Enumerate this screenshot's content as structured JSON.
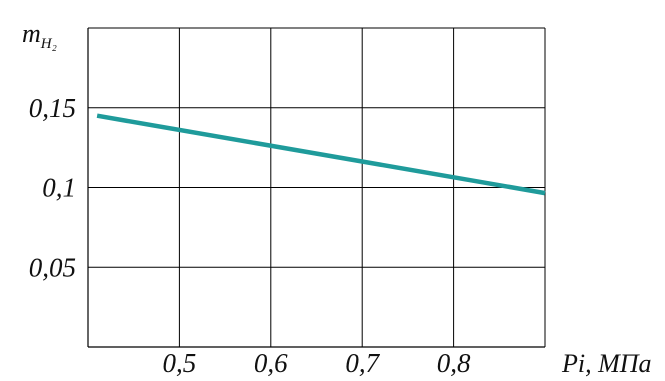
{
  "chart_data": {
    "type": "line",
    "title": "",
    "xlabel": "Pi, МПа",
    "ylabel": "m",
    "ylabel_subscript": "H₂",
    "x_ticks": [
      {
        "value": 0.5,
        "label": "0,5"
      },
      {
        "value": 0.6,
        "label": "0,6"
      },
      {
        "value": 0.7,
        "label": "0,7"
      },
      {
        "value": 0.8,
        "label": "0,8"
      }
    ],
    "y_ticks": [
      {
        "value": 0.05,
        "label": "0,05"
      },
      {
        "value": 0.1,
        "label": "0,1"
      },
      {
        "value": 0.15,
        "label": "0,15"
      }
    ],
    "xlim": [
      0.4,
      0.9
    ],
    "ylim": [
      0.0,
      0.2
    ],
    "grid": true,
    "series": [
      {
        "color": "#1f9b9b",
        "x": [
          0.41,
          0.9
        ],
        "y": [
          0.145,
          0.0965
        ]
      }
    ]
  }
}
